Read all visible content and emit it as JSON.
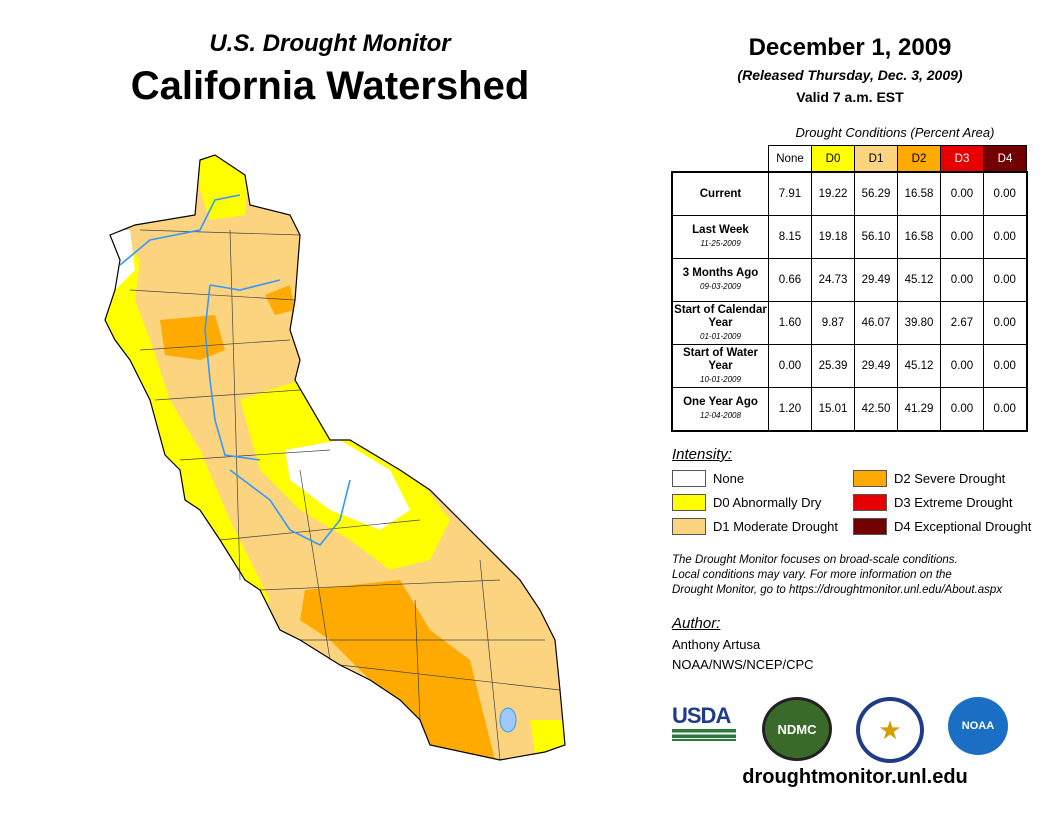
{
  "header": {
    "subtitle": "U.S. Drought Monitor",
    "title": "California Watershed",
    "date": "December 1, 2009",
    "released": "(Released Thursday, Dec. 3, 2009)",
    "valid": "Valid 7 a.m. EST"
  },
  "table": {
    "caption": "Drought Conditions (Percent Area)",
    "columns": [
      {
        "label": "None",
        "color": "#ffffff",
        "text": "#000"
      },
      {
        "label": "D0",
        "color": "#ffff00",
        "text": "#000"
      },
      {
        "label": "D1",
        "color": "#fcd37f",
        "text": "#000"
      },
      {
        "label": "D2",
        "color": "#ffaa00",
        "text": "#000"
      },
      {
        "label": "D3",
        "color": "#e60000",
        "text": "#fff"
      },
      {
        "label": "D4",
        "color": "#730000",
        "text": "#fff"
      }
    ],
    "rows": [
      {
        "label": "Current",
        "date": "",
        "values": [
          "7.91",
          "19.22",
          "56.29",
          "16.58",
          "0.00",
          "0.00"
        ]
      },
      {
        "label": "Last Week",
        "date": "11-25-2009",
        "values": [
          "8.15",
          "19.18",
          "56.10",
          "16.58",
          "0.00",
          "0.00"
        ]
      },
      {
        "label": "3 Months Ago",
        "date": "09-03-2009",
        "values": [
          "0.66",
          "24.73",
          "29.49",
          "45.12",
          "0.00",
          "0.00"
        ]
      },
      {
        "label": "Start of Calendar Year",
        "date": "01-01-2009",
        "values": [
          "1.60",
          "9.87",
          "46.07",
          "39.80",
          "2.67",
          "0.00"
        ]
      },
      {
        "label": "Start of Water Year",
        "date": "10-01-2009",
        "values": [
          "0.00",
          "25.39",
          "29.49",
          "45.12",
          "0.00",
          "0.00"
        ]
      },
      {
        "label": "One Year Ago",
        "date": "12-04-2008",
        "values": [
          "1.20",
          "15.01",
          "42.50",
          "41.29",
          "0.00",
          "0.00"
        ]
      }
    ]
  },
  "legend": {
    "title": "Intensity:",
    "items": [
      {
        "label": "None",
        "color": "#ffffff"
      },
      {
        "label": "D0 Abnormally Dry",
        "color": "#ffff00"
      },
      {
        "label": "D1 Moderate Drought",
        "color": "#fcd37f"
      },
      {
        "label": "D2 Severe Drought",
        "color": "#ffaa00"
      },
      {
        "label": "D3 Extreme Drought",
        "color": "#e60000"
      },
      {
        "label": "D4 Exceptional Drought",
        "color": "#730000"
      }
    ]
  },
  "note": [
    "The Drought Monitor focuses on broad-scale conditions.",
    "Local conditions may vary. For more information on the",
    "Drought Monitor, go to https://droughtmonitor.unl.edu/About.aspx"
  ],
  "author": {
    "label": "Author:",
    "name": "Anthony Artusa",
    "org": "NOAA/NWS/NCEP/CPC"
  },
  "logos": {
    "usda": "USDA",
    "ndmc": "NDMC",
    "noaa": "NOAA"
  },
  "url": "droughtmonitor.unl.edu"
}
